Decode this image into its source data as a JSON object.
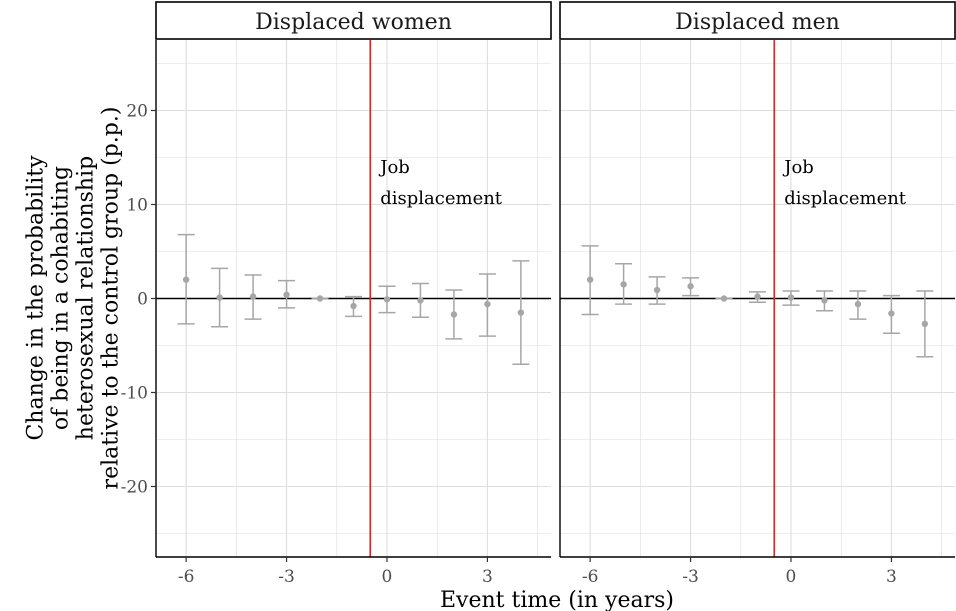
{
  "chart_data": {
    "type": "scatter",
    "facets": [
      {
        "label": "Displaced women",
        "x": [
          -6,
          -5,
          -4,
          -3,
          -2,
          -1,
          0,
          1,
          2,
          3,
          4
        ],
        "estimate": [
          2.0,
          0.1,
          0.2,
          0.4,
          0.0,
          -0.8,
          -0.1,
          -0.2,
          -1.7,
          -0.6,
          -1.5
        ],
        "ci_low": [
          -2.7,
          -3.0,
          -2.2,
          -1.0,
          0.0,
          -1.9,
          -1.5,
          -2.0,
          -4.3,
          -4.0,
          -7.0
        ],
        "ci_high": [
          6.8,
          3.2,
          2.5,
          1.9,
          0.0,
          0.2,
          1.3,
          1.6,
          0.9,
          2.6,
          4.0
        ],
        "annotation": [
          "Job",
          "displacement"
        ]
      },
      {
        "label": "Displaced men",
        "x": [
          -6,
          -5,
          -4,
          -3,
          -2,
          -1,
          0,
          1,
          2,
          3,
          4
        ],
        "estimate": [
          2.0,
          1.5,
          0.9,
          1.3,
          0.0,
          0.2,
          0.1,
          -0.2,
          -0.6,
          -1.6,
          -2.7
        ],
        "ci_low": [
          -1.7,
          -0.6,
          -0.6,
          0.3,
          0.0,
          -0.4,
          -0.7,
          -1.3,
          -2.2,
          -3.7,
          -6.2
        ],
        "ci_high": [
          5.6,
          3.7,
          2.3,
          2.2,
          0.0,
          0.7,
          0.8,
          0.8,
          0.8,
          0.3,
          0.8
        ],
        "annotation": [
          "Job",
          "displacement"
        ]
      }
    ],
    "event_line_x": -0.5,
    "reference_line_y": 0,
    "xlim": [
      -6.9,
      4.9
    ],
    "ylim": [
      -27.5,
      27.5
    ],
    "x_ticks": [
      -6,
      -3,
      0,
      3
    ],
    "x_tick_labels": [
      "-6",
      "-3",
      "0",
      "3"
    ],
    "y_ticks": [
      -20,
      -10,
      0,
      10,
      20
    ],
    "y_tick_labels": [
      "-20",
      "-10",
      "0",
      "10",
      "20"
    ],
    "xlabel": "Event time (in years)",
    "ylabel_lines": [
      "Change in the probability",
      "of being in a cohabiting",
      "heterosexual relationship",
      "relative to the control group (p.p.)"
    ],
    "grid": true,
    "colors": {
      "points": "#a6a6a6",
      "event_line": "#d62728",
      "zero_line": "#000000",
      "grid": "#dedede",
      "strip_border": "#000000"
    }
  }
}
